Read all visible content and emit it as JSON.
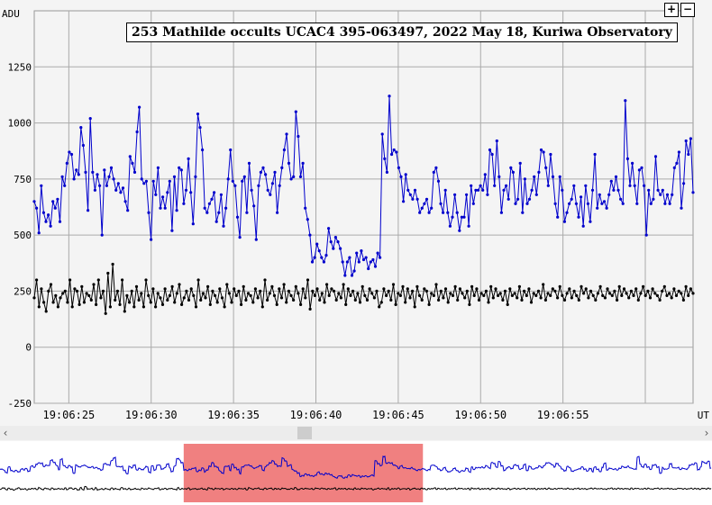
{
  "chart_data": {
    "type": "line",
    "title": "253 Mathilde occults UCAC4 395-063497, 2022 May 18, Kuriwa Observatory",
    "ylabel": "ADU",
    "xlabel": "UT",
    "ylim": [
      -250,
      1500
    ],
    "yticks": [
      -250,
      0,
      250,
      500,
      750,
      1000,
      1250
    ],
    "xticks": [
      "19:06:25",
      "19:06:30",
      "19:06:35",
      "19:06:40",
      "19:06:45",
      "19:06:50",
      "19:06:55"
    ],
    "x_start_seconds": 22.9,
    "x_end_seconds": 62.9,
    "grid": true,
    "legend": "none",
    "series": [
      {
        "color": "#0000cc",
        "values": [
          650,
          620,
          510,
          720,
          600,
          560,
          590,
          540,
          650,
          620,
          660,
          560,
          760,
          720,
          820,
          870,
          860,
          750,
          790,
          770,
          980,
          900,
          780,
          610,
          1020,
          780,
          700,
          770,
          720,
          500,
          790,
          720,
          760,
          800,
          750,
          700,
          730,
          690,
          710,
          650,
          610,
          850,
          820,
          780,
          960,
          1070,
          750,
          730,
          740,
          600,
          480,
          740,
          680,
          800,
          620,
          670,
          620,
          690,
          740,
          520,
          760,
          610,
          800,
          790,
          640,
          700,
          840,
          690,
          550,
          760,
          1040,
          980,
          880,
          620,
          600,
          640,
          660,
          690,
          560,
          600,
          680,
          540,
          620,
          750,
          880,
          740,
          720,
          580,
          490,
          740,
          760,
          600,
          820,
          700,
          630,
          480,
          720,
          780,
          800,
          770,
          700,
          680,
          730,
          780,
          600,
          720,
          800,
          880,
          950,
          820,
          750,
          760,
          1050,
          940,
          760,
          820,
          620,
          570,
          500,
          380,
          400,
          460,
          430,
          400,
          380,
          410,
          530,
          470,
          440,
          490,
          470,
          440,
          380,
          320,
          380,
          400,
          320,
          340,
          420,
          380,
          430,
          390,
          400,
          350,
          380,
          390,
          360,
          420,
          400,
          950,
          840,
          780,
          1120,
          860,
          880,
          870,
          800,
          760,
          650,
          770,
          700,
          680,
          660,
          700,
          660,
          600,
          620,
          640,
          660,
          600,
          620,
          780,
          800,
          740,
          640,
          600,
          700,
          600,
          540,
          580,
          680,
          600,
          520,
          580,
          580,
          680,
          540,
          720,
          640,
          700,
          700,
          720,
          700,
          770,
          680,
          880,
          860,
          720,
          920,
          760,
          600,
          700,
          720,
          660,
          800,
          780,
          640,
          660,
          820,
          600,
          750,
          640,
          660,
          700,
          760,
          680,
          780,
          880,
          870,
          800,
          720,
          860,
          760,
          640,
          580,
          760,
          700,
          560,
          600,
          640,
          660,
          720,
          640,
          580,
          670,
          540,
          720,
          640,
          560,
          700,
          860,
          620,
          680,
          640,
          650,
          620,
          680,
          740,
          700,
          760,
          700,
          660,
          640,
          1100,
          840,
          720,
          820,
          720,
          640,
          790,
          800,
          720,
          500,
          700,
          640,
          660,
          850,
          700,
          680,
          700,
          640,
          680,
          640,
          680,
          800,
          820,
          870,
          620,
          730,
          920,
          860,
          930,
          690
        ]
      },
      {
        "color": "#000000",
        "values": [
          220,
          300,
          180,
          260,
          200,
          160,
          250,
          280,
          200,
          230,
          180,
          220,
          240,
          250,
          200,
          300,
          180,
          260,
          250,
          190,
          270,
          200,
          240,
          230,
          210,
          280,
          190,
          300,
          220,
          250,
          150,
          330,
          180,
          370,
          210,
          250,
          190,
          300,
          160,
          230,
          200,
          250,
          180,
          270,
          210,
          240,
          180,
          300,
          230,
          200,
          260,
          180,
          240,
          220,
          190,
          260,
          210,
          230,
          270,
          200,
          240,
          280,
          190,
          220,
          250,
          210,
          260,
          230,
          180,
          300,
          210,
          240,
          220,
          270,
          190,
          250,
          230,
          200,
          260,
          220,
          180,
          280,
          240,
          200,
          260,
          230,
          250,
          190,
          270,
          210,
          240,
          230,
          200,
          260,
          220,
          250,
          180,
          300,
          210,
          240,
          270,
          230,
          190,
          260,
          220,
          280,
          200,
          250,
          230,
          210,
          270,
          240,
          190,
          260,
          220,
          300,
          170,
          250,
          230,
          260,
          210,
          240,
          200,
          280,
          230,
          260,
          250,
          210,
          240,
          220,
          280,
          190,
          260,
          230,
          250,
          210,
          240,
          200,
          270,
          230,
          210,
          260,
          240,
          220,
          250,
          180,
          200,
          260,
          230,
          250,
          210,
          280,
          190,
          240,
          230,
          270,
          200,
          260,
          220,
          250,
          180,
          270,
          230,
          210,
          260,
          250,
          190,
          240,
          230,
          280,
          210,
          250,
          220,
          260,
          200,
          240,
          230,
          270,
          210,
          260,
          240,
          220,
          250,
          190,
          270,
          230,
          260,
          210,
          240,
          230,
          250,
          200,
          270,
          220,
          260,
          230,
          240,
          210,
          250,
          190,
          260,
          230,
          240,
          220,
          270,
          210,
          250,
          230,
          260,
          200,
          240,
          230,
          250,
          220,
          280,
          210,
          240,
          230,
          260,
          250,
          220,
          270,
          230,
          210,
          240,
          260,
          220,
          250,
          230,
          210,
          270,
          240,
          260,
          220,
          250,
          230,
          210,
          240,
          270,
          230,
          220,
          260,
          240,
          230,
          250,
          210,
          270,
          230,
          260,
          240,
          220,
          250,
          230,
          260,
          210,
          240,
          270,
          230,
          250,
          220,
          260,
          240,
          230,
          210,
          250,
          270,
          230,
          240,
          220,
          260,
          230,
          250,
          240,
          210,
          270,
          230,
          260,
          240
        ]
      }
    ]
  },
  "controls": {
    "zoom_in": "+",
    "zoom_out": "−",
    "scroll_left": "‹",
    "scroll_right": "›"
  },
  "overview": {
    "highlight_start_fraction": 0.258,
    "highlight_end_fraction": 0.594
  }
}
